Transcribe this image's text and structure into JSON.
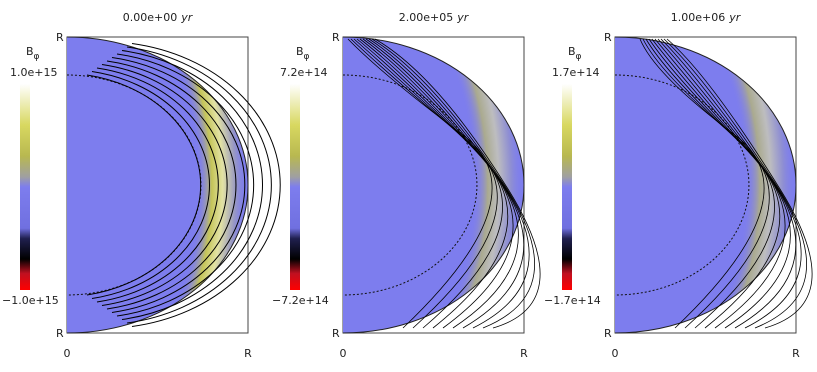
{
  "panels": [
    {
      "title": "0.00e+00",
      "title_unit": "yr",
      "colorbar": {
        "label": "B",
        "subscript": "φ",
        "max": "1.0e+15",
        "min": "−1.0e+15"
      },
      "axes": {
        "y_top": "R",
        "y_bottom": "R",
        "x_left": "0",
        "x_right": "R"
      }
    },
    {
      "title": "2.00e+05",
      "title_unit": "yr",
      "colorbar": {
        "label": "B",
        "subscript": "φ",
        "max": "7.2e+14",
        "min": "−7.2e+14"
      },
      "axes": {
        "y_top": "R",
        "y_bottom": "R",
        "x_left": "0",
        "x_right": "R"
      }
    },
    {
      "title": "1.00e+06",
      "title_unit": "yr",
      "colorbar": {
        "label": "B",
        "subscript": "φ",
        "max": "1.7e+14",
        "min": "−1.7e+14"
      },
      "axes": {
        "y_top": "R",
        "y_bottom": "R",
        "x_left": "0",
        "x_right": "R"
      }
    }
  ]
}
